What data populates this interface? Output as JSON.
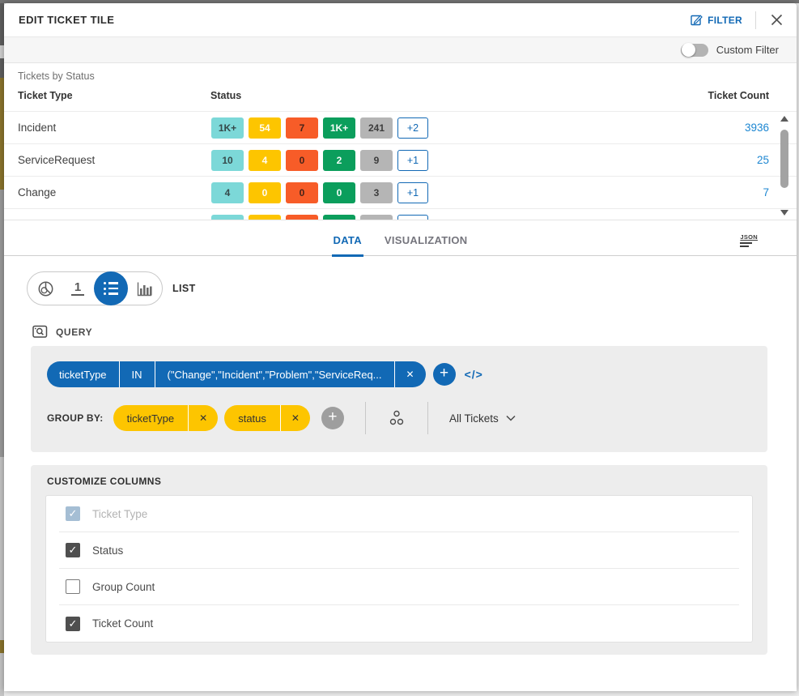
{
  "header": {
    "title": "EDIT TICKET TILE",
    "filter_label": "FILTER"
  },
  "filter_bar": {
    "toggle_label": "Custom Filter",
    "toggle_on": false
  },
  "preview": {
    "title": "Tickets by Status",
    "columns": {
      "type": "Ticket Type",
      "status": "Status",
      "count": "Ticket Count"
    },
    "rows": [
      {
        "type": "Incident",
        "badges": [
          {
            "text": "1K+",
            "color": "teal"
          },
          {
            "text": "54",
            "color": "yellow"
          },
          {
            "text": "7",
            "color": "orange"
          },
          {
            "text": "1K+",
            "color": "green"
          },
          {
            "text": "241",
            "color": "gray"
          }
        ],
        "more": "+2",
        "count": "3936"
      },
      {
        "type": "ServiceRequest",
        "badges": [
          {
            "text": "10",
            "color": "teal"
          },
          {
            "text": "4",
            "color": "yellow"
          },
          {
            "text": "0",
            "color": "orange"
          },
          {
            "text": "2",
            "color": "green"
          },
          {
            "text": "9",
            "color": "gray"
          }
        ],
        "more": "+1",
        "count": "25"
      },
      {
        "type": "Change",
        "badges": [
          {
            "text": "4",
            "color": "teal"
          },
          {
            "text": "0",
            "color": "yellow"
          },
          {
            "text": "0",
            "color": "orange"
          },
          {
            "text": "0",
            "color": "green"
          },
          {
            "text": "3",
            "color": "gray"
          }
        ],
        "more": "+1",
        "count": "7"
      },
      {
        "type": "",
        "badges": [
          {
            "text": "",
            "color": "teal"
          },
          {
            "text": "",
            "color": "yellow"
          },
          {
            "text": "",
            "color": "orange"
          },
          {
            "text": "",
            "color": "green"
          },
          {
            "text": "",
            "color": "gray"
          }
        ],
        "more": "",
        "count": ""
      }
    ]
  },
  "tabs": {
    "data": "DATA",
    "visualization": "VISUALIZATION",
    "json_label": "JSON"
  },
  "chart_selector": {
    "options": [
      "pie",
      "single-value",
      "list",
      "bar"
    ],
    "selected": "list",
    "selected_label": "LIST"
  },
  "query": {
    "label": "QUERY",
    "pill": {
      "field": "ticketType",
      "operator": "IN",
      "value": "(\"Change\",\"Incident\",\"Problem\",\"ServiceReq...",
      "remove_glyph": "✕"
    },
    "add_glyph": "+",
    "code_glyph": "</>",
    "group_by": {
      "label": "GROUP BY:",
      "pills": [
        {
          "label": "ticketType",
          "remove_glyph": "✕"
        },
        {
          "label": "status",
          "remove_glyph": "✕"
        }
      ],
      "add_glyph": "+",
      "scope_label": "All Tickets"
    }
  },
  "customize": {
    "title": "CUSTOMIZE COLUMNS",
    "items": [
      {
        "label": "Ticket Type",
        "checked": true,
        "disabled": true
      },
      {
        "label": "Status",
        "checked": true,
        "disabled": false
      },
      {
        "label": "Group Count",
        "checked": false,
        "disabled": false
      },
      {
        "label": "Ticket Count",
        "checked": true,
        "disabled": false
      }
    ]
  },
  "colors": {
    "accent_blue": "#1269b5",
    "link_blue": "#1c86d1",
    "badge_teal": "#7cd8d8",
    "badge_yellow": "#fdc500",
    "badge_orange": "#f75c28",
    "badge_green": "#0b9e5c",
    "badge_gray": "#b5b5b5",
    "panel_gray": "#ededed"
  }
}
